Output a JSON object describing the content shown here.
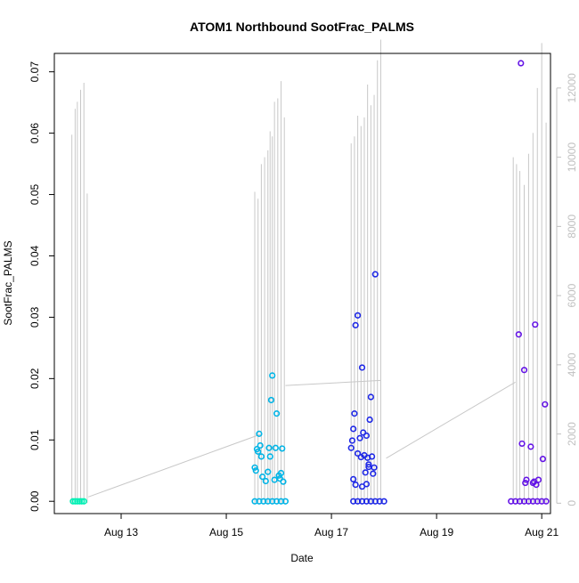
{
  "chart_data": {
    "type": "scatter",
    "title": "ATOM1 Northbound SootFrac_PALMS",
    "xlabel": "Date",
    "ylabel": "SootFrac_PALMS",
    "y_ticks": [
      "0.00",
      "0.01",
      "0.02",
      "0.03",
      "0.04",
      "0.05",
      "0.06",
      "0.07"
    ],
    "y_tick_values": [
      0.0,
      0.01,
      0.02,
      0.03,
      0.04,
      0.05,
      0.06,
      0.07
    ],
    "ylim": [
      -0.002,
      0.073
    ],
    "x_ticks": [
      "Aug 13",
      "Aug 15",
      "Aug 17",
      "Aug 19",
      "Aug 21"
    ],
    "x_tick_values": [
      "2016-08-13",
      "2016-08-15",
      "2016-08-17",
      "2016-08-19",
      "2016-08-21"
    ],
    "xlim": [
      "2016-08-11 17:30",
      "2016-08-21 04:00"
    ],
    "y2_ticks": [
      "0",
      "2000",
      "4000",
      "6000",
      "8000",
      "10000",
      "12000"
    ],
    "y2_tick_values": [
      0,
      2000,
      4000,
      6000,
      8000,
      10000,
      12000
    ],
    "y2lim": [
      -300,
      13000
    ],
    "grid": false,
    "colors": {
      "altitude_line": "#c8c8c8",
      "flight1": "#00f0b4",
      "flight2": "#00b4e6",
      "flight3": "#1e28e6",
      "flight4": "#6414e6",
      "axis": "#000000",
      "axis_right": "#c0c0c0"
    },
    "series": [
      {
        "color_key": "flight1",
        "points": [
          [
            "2016-08-12 02:00",
            0.0
          ],
          [
            "2016-08-12 03:00",
            0.0
          ],
          [
            "2016-08-12 04:00",
            0.0
          ],
          [
            "2016-08-12 05:00",
            0.0
          ],
          [
            "2016-08-12 06:00",
            0.0
          ],
          [
            "2016-08-12 07:00",
            0.0
          ]
        ]
      },
      {
        "color_key": "flight2",
        "points": [
          [
            "2016-08-15 13:00",
            0.0
          ],
          [
            "2016-08-15 15:00",
            0.0
          ],
          [
            "2016-08-15 17:00",
            0.0
          ],
          [
            "2016-08-15 19:00",
            0.0
          ],
          [
            "2016-08-15 21:00",
            0.0
          ],
          [
            "2016-08-15 23:00",
            0.0
          ],
          [
            "2016-08-16 01:00",
            0.0
          ],
          [
            "2016-08-16 03:00",
            0.0
          ],
          [
            "2016-08-15 13:00",
            0.0055
          ],
          [
            "2016-08-15 13:30",
            0.005
          ],
          [
            "2016-08-15 14:00",
            0.0085
          ],
          [
            "2016-08-15 14:30",
            0.0081
          ],
          [
            "2016-08-15 15:00",
            0.011
          ],
          [
            "2016-08-15 15:30",
            0.0091
          ],
          [
            "2016-08-15 16:00",
            0.0073
          ],
          [
            "2016-08-15 16:30",
            0.004
          ],
          [
            "2016-08-15 18:00",
            0.0033
          ],
          [
            "2016-08-15 19:00",
            0.0048
          ],
          [
            "2016-08-15 19:30",
            0.0087
          ],
          [
            "2016-08-15 20:00",
            0.0073
          ],
          [
            "2016-08-15 20:30",
            0.0165
          ],
          [
            "2016-08-15 21:00",
            0.0205
          ],
          [
            "2016-08-15 22:00",
            0.0035
          ],
          [
            "2016-08-15 22:30",
            0.0087
          ],
          [
            "2016-08-15 23:00",
            0.0143
          ],
          [
            "2016-08-16 00:00",
            0.0042
          ],
          [
            "2016-08-16 00:30",
            0.0037
          ],
          [
            "2016-08-16 01:00",
            0.0046
          ],
          [
            "2016-08-16 01:30",
            0.0086
          ],
          [
            "2016-08-16 02:00",
            0.0032
          ]
        ]
      },
      {
        "color_key": "flight3",
        "points": [
          [
            "2016-08-17 10:00",
            0.0
          ],
          [
            "2016-08-17 12:00",
            0.0
          ],
          [
            "2016-08-17 14:00",
            0.0
          ],
          [
            "2016-08-17 16:00",
            0.0
          ],
          [
            "2016-08-17 18:00",
            0.0
          ],
          [
            "2016-08-17 20:00",
            0.0
          ],
          [
            "2016-08-17 22:00",
            0.0
          ],
          [
            "2016-08-18 00:00",
            0.0
          ],
          [
            "2016-08-17 09:00",
            0.0087
          ],
          [
            "2016-08-17 09:30",
            0.0099
          ],
          [
            "2016-08-17 10:00",
            0.0118
          ],
          [
            "2016-08-17 10:30",
            0.0143
          ],
          [
            "2016-08-17 11:00",
            0.0287
          ],
          [
            "2016-08-17 12:00",
            0.0303
          ],
          [
            "2016-08-17 10:00",
            0.0036
          ],
          [
            "2016-08-17 11:00",
            0.0027
          ],
          [
            "2016-08-17 12:00",
            0.0078
          ],
          [
            "2016-08-17 13:00",
            0.0103
          ],
          [
            "2016-08-17 13:30",
            0.0072
          ],
          [
            "2016-08-17 14:00",
            0.0218
          ],
          [
            "2016-08-17 14:30",
            0.0112
          ],
          [
            "2016-08-17 15:00",
            0.0075
          ],
          [
            "2016-08-17 15:30",
            0.0047
          ],
          [
            "2016-08-17 16:00",
            0.0107
          ],
          [
            "2016-08-17 16:30",
            0.0071
          ],
          [
            "2016-08-17 17:00",
            0.0056
          ],
          [
            "2016-08-17 17:30",
            0.0133
          ],
          [
            "2016-08-17 18:00",
            0.017
          ],
          [
            "2016-08-17 18:30",
            0.0073
          ],
          [
            "2016-08-17 19:00",
            0.0045
          ],
          [
            "2016-08-17 20:00",
            0.037
          ],
          [
            "2016-08-17 19:30",
            0.0055
          ],
          [
            "2016-08-17 14:00",
            0.0024
          ],
          [
            "2016-08-17 16:00",
            0.0028
          ],
          [
            "2016-08-17 17:00",
            0.006
          ]
        ]
      },
      {
        "color_key": "flight4",
        "points": [
          [
            "2016-08-20 10:00",
            0.0
          ],
          [
            "2016-08-20 12:00",
            0.0
          ],
          [
            "2016-08-20 14:00",
            0.0
          ],
          [
            "2016-08-20 16:00",
            0.0
          ],
          [
            "2016-08-20 18:00",
            0.0
          ],
          [
            "2016-08-20 20:00",
            0.0
          ],
          [
            "2016-08-20 22:00",
            0.0
          ],
          [
            "2016-08-21 00:00",
            0.0
          ],
          [
            "2016-08-21 02:00",
            0.0
          ],
          [
            "2016-08-20 14:30",
            0.0714
          ],
          [
            "2016-08-20 13:30",
            0.0272
          ],
          [
            "2016-08-20 16:00",
            0.0214
          ],
          [
            "2016-08-20 21:00",
            0.0288
          ],
          [
            "2016-08-21 01:30",
            0.0158
          ],
          [
            "2016-08-20 15:00",
            0.0094
          ],
          [
            "2016-08-20 19:00",
            0.0089
          ],
          [
            "2016-08-21 00:30",
            0.0069
          ],
          [
            "2016-08-20 17:00",
            0.0035
          ],
          [
            "2016-08-20 16:30",
            0.003
          ],
          [
            "2016-08-20 20:00",
            0.003
          ],
          [
            "2016-08-20 21:30",
            0.0027
          ],
          [
            "2016-08-20 22:30",
            0.0035
          ],
          [
            "2016-08-20 20:30",
            0.0032
          ]
        ]
      }
    ],
    "altitude_spikes": [
      {
        "t": "2016-08-12 01:30",
        "v": 10650
      },
      {
        "t": "2016-08-12 03:00",
        "v": 11400
      },
      {
        "t": "2016-08-12 04:00",
        "v": 11600
      },
      {
        "t": "2016-08-12 05:30",
        "v": 11950
      },
      {
        "t": "2016-08-12 07:00",
        "v": 12150
      },
      {
        "t": "2016-08-12 08:30",
        "v": 8950
      },
      {
        "t": "2016-08-15 13:00",
        "v": 9000
      },
      {
        "t": "2016-08-15 14:30",
        "v": 8800
      },
      {
        "t": "2016-08-15 16:00",
        "v": 9800
      },
      {
        "t": "2016-08-15 17:30",
        "v": 10000
      },
      {
        "t": "2016-08-15 19:00",
        "v": 10200
      },
      {
        "t": "2016-08-15 20:00",
        "v": 10750
      },
      {
        "t": "2016-08-15 21:00",
        "v": 10600
      },
      {
        "t": "2016-08-15 22:00",
        "v": 11600
      },
      {
        "t": "2016-08-15 23:30",
        "v": 11700
      },
      {
        "t": "2016-08-16 01:00",
        "v": 12200
      },
      {
        "t": "2016-08-16 02:30",
        "v": 11150
      },
      {
        "t": "2016-08-17 09:00",
        "v": 10400
      },
      {
        "t": "2016-08-17 10:30",
        "v": 10600
      },
      {
        "t": "2016-08-17 12:00",
        "v": 11200
      },
      {
        "t": "2016-08-17 13:30",
        "v": 10900
      },
      {
        "t": "2016-08-17 15:00",
        "v": 11150
      },
      {
        "t": "2016-08-17 16:30",
        "v": 12100
      },
      {
        "t": "2016-08-17 18:00",
        "v": 11500
      },
      {
        "t": "2016-08-17 19:30",
        "v": 11800
      },
      {
        "t": "2016-08-17 21:00",
        "v": 12800
      },
      {
        "t": "2016-08-17 22:30",
        "v": 13400
      },
      {
        "t": "2016-08-20 11:00",
        "v": 10000
      },
      {
        "t": "2016-08-20 12:30",
        "v": 9800
      },
      {
        "t": "2016-08-20 14:00",
        "v": 9600
      },
      {
        "t": "2016-08-20 16:00",
        "v": 9200
      },
      {
        "t": "2016-08-20 18:00",
        "v": 10100
      },
      {
        "t": "2016-08-20 20:00",
        "v": 10700
      },
      {
        "t": "2016-08-20 22:00",
        "v": 12000
      },
      {
        "t": "2016-08-21 00:00",
        "v": 13300
      },
      {
        "t": "2016-08-21 02:00",
        "v": 11000
      }
    ],
    "altitude_transits": [
      [
        [
          "2016-08-12 09:00",
          180
        ],
        [
          "2016-08-15 16:00",
          2000
        ]
      ],
      [
        [
          "2016-08-16 03:00",
          3400
        ],
        [
          "2016-08-17 22:30",
          3550
        ]
      ],
      [
        [
          "2016-08-18 01:00",
          1300
        ],
        [
          "2016-08-20 12:00",
          3500
        ]
      ]
    ]
  }
}
